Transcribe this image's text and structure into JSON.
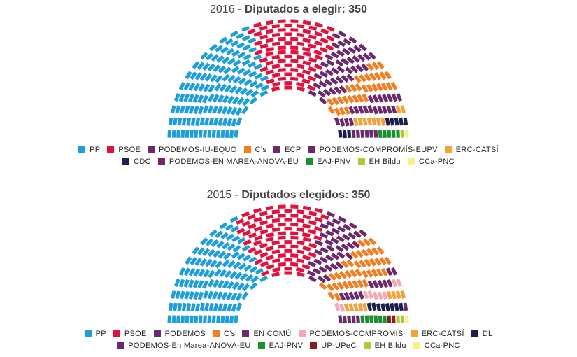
{
  "chart_data": [
    {
      "type": "parliament",
      "year": "2016",
      "title_rest": "Diputados a elegir: 350",
      "total_seats": 350,
      "legend_rows": [
        [
          0,
          1,
          2,
          3,
          4,
          5,
          6
        ],
        [
          7,
          8,
          9,
          10,
          11
        ]
      ],
      "series": [
        {
          "name": "PP",
          "color": "#1f9fd9",
          "value": 137
        },
        {
          "name": "PSOE",
          "color": "#e3123a",
          "value": 85
        },
        {
          "name": "PODEMOS-IU-EQUO",
          "color": "#6b2a6b",
          "value": 45
        },
        {
          "name": "C's",
          "color": "#f47d20",
          "value": 32
        },
        {
          "name": "ECP",
          "color": "#6b2a6b",
          "value": 12
        },
        {
          "name": "PODEMOS-COMPROMÍS-EUPV",
          "color": "#6b2a6b",
          "value": 9
        },
        {
          "name": "ERC-CATSÍ",
          "color": "#f4a23a",
          "value": 9
        },
        {
          "name": "CDC",
          "color": "#1b1f4a",
          "value": 8
        },
        {
          "name": "PODEMOS-EN MAREA-ANOVA-EU",
          "color": "#6b2a6b",
          "value": 6
        },
        {
          "name": "EAJ-PNV",
          "color": "#1a8f2e",
          "value": 5
        },
        {
          "name": "EH Bildu",
          "color": "#b7c43a",
          "value": 1
        },
        {
          "name": "CCa-PNC",
          "color": "#f5f08a",
          "value": 1
        }
      ]
    },
    {
      "type": "parliament",
      "year": "2015",
      "title_rest": "Diputados elegidos: 350",
      "total_seats": 350,
      "legend_rows": [
        [
          0,
          1,
          2,
          3,
          4,
          5,
          6,
          7
        ],
        [
          8,
          9,
          10,
          11,
          12
        ]
      ],
      "series": [
        {
          "name": "PP",
          "color": "#1f9fd9",
          "value": 123
        },
        {
          "name": "PSOE",
          "color": "#e3123a",
          "value": 90
        },
        {
          "name": "PODEMOS",
          "color": "#6b2a6b",
          "value": 42
        },
        {
          "name": "C's",
          "color": "#f47d20",
          "value": 40
        },
        {
          "name": "EN COMÚ",
          "color": "#6b2a6b",
          "value": 12
        },
        {
          "name": "PODEMOS-COMPROMÍS",
          "color": "#f6a8b8",
          "value": 9
        },
        {
          "name": "ERC-CATSÍ",
          "color": "#f4a23a",
          "value": 9
        },
        {
          "name": "DL",
          "color": "#1b1f4a",
          "value": 8
        },
        {
          "name": "PODEMOS-En Marea-ANOVA-EU",
          "color": "#6b2a6b",
          "value": 6
        },
        {
          "name": "EAJ-PNV",
          "color": "#1a8f2e",
          "value": 6
        },
        {
          "name": "UP-UPeC",
          "color": "#8b1a1a",
          "value": 2
        },
        {
          "name": "EH Bildu",
          "color": "#b7c43a",
          "value": 2
        },
        {
          "name": "CCa-PNC",
          "color": "#f5f08a",
          "value": 1
        }
      ]
    }
  ]
}
